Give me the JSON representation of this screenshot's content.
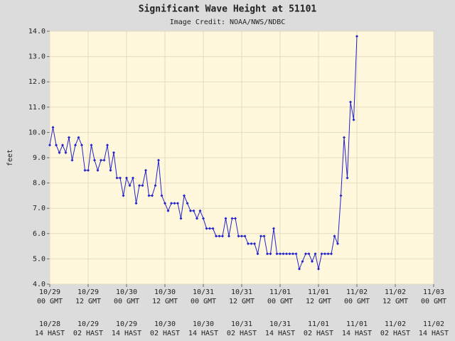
{
  "chart_data": {
    "type": "line",
    "title": "Significant Wave Height at 51101",
    "subtitle": "Image Credit: NOAA/NWS/NDBC",
    "y_label": "feet",
    "x": [
      0,
      1,
      2,
      3,
      4,
      5,
      6,
      7,
      8,
      9,
      10,
      11,
      12,
      13,
      14,
      15,
      16,
      17,
      18,
      19,
      20,
      21,
      22,
      23,
      24,
      25,
      26,
      27,
      28,
      29,
      30,
      31,
      32,
      33,
      34,
      35,
      36,
      37,
      38,
      39,
      40,
      41,
      42,
      43,
      44,
      45,
      46,
      47,
      48,
      49,
      50,
      51,
      52,
      53,
      54,
      55,
      56,
      57,
      58,
      59,
      60,
      61,
      62,
      63,
      64,
      65,
      66,
      67,
      68,
      69,
      70,
      71,
      72,
      73,
      74,
      75,
      76,
      77,
      78,
      79,
      80,
      81,
      82,
      83,
      84,
      85,
      86,
      87,
      88,
      89,
      90,
      91,
      92,
      93,
      94,
      95,
      96
    ],
    "series": [
      {
        "name": "Significant Wave Height",
        "color": "#2222cc",
        "values": [
          9.5,
          10.2,
          9.5,
          9.2,
          9.5,
          9.2,
          9.8,
          8.9,
          9.5,
          9.8,
          9.5,
          8.5,
          8.5,
          9.5,
          8.9,
          8.5,
          8.9,
          8.9,
          9.5,
          8.5,
          9.2,
          8.2,
          8.2,
          7.5,
          8.2,
          7.9,
          8.2,
          7.2,
          7.9,
          7.9,
          8.5,
          7.5,
          7.5,
          7.9,
          8.9,
          7.5,
          7.2,
          6.9,
          7.2,
          7.2,
          7.2,
          6.6,
          7.5,
          7.2,
          6.9,
          6.9,
          6.6,
          6.9,
          6.6,
          6.2,
          6.2,
          6.2,
          5.9,
          5.9,
          5.9,
          6.6,
          5.9,
          6.6,
          6.6,
          5.9,
          5.9,
          5.9,
          5.6,
          5.6,
          5.6,
          5.2,
          5.9,
          5.9,
          5.2,
          5.2,
          6.2,
          5.2,
          5.2,
          5.2,
          5.2,
          5.2,
          5.2,
          5.2,
          4.6,
          4.9,
          5.2,
          5.2,
          4.9,
          5.2,
          4.6,
          5.2,
          5.2,
          5.2,
          5.2,
          5.9,
          5.6,
          7.5,
          9.8,
          8.2,
          11.2,
          10.5,
          13.8
        ]
      }
    ],
    "xlim": [
      0,
      120
    ],
    "xticks": [
      {
        "value": 0,
        "label": "10/29\n00 GMT",
        "local_label": "10/28\n14 HAST"
      },
      {
        "value": 12,
        "label": "10/29\n12 GMT",
        "local_label": "10/29\n02 HAST"
      },
      {
        "value": 24,
        "label": "10/30\n00 GMT",
        "local_label": "10/29\n14 HAST"
      },
      {
        "value": 36,
        "label": "10/30\n12 GMT",
        "local_label": "10/30\n02 HAST"
      },
      {
        "value": 48,
        "label": "10/31\n00 GMT",
        "local_label": "10/30\n14 HAST"
      },
      {
        "value": 60,
        "label": "10/31\n12 GMT",
        "local_label": "10/31\n02 HAST"
      },
      {
        "value": 72,
        "label": "11/01\n00 GMT",
        "local_label": "10/31\n14 HAST"
      },
      {
        "value": 84,
        "label": "11/01\n12 GMT",
        "local_label": "11/01\n02 HAST"
      },
      {
        "value": 96,
        "label": "11/02\n00 GMT",
        "local_label": "11/01\n14 HAST"
      },
      {
        "value": 108,
        "label": "11/02\n12 GMT",
        "local_label": "11/02\n02 HAST"
      },
      {
        "value": 120,
        "label": "11/03\n00 GMT",
        "local_label": "11/02\n14 HAST"
      }
    ],
    "ylim": [
      4,
      14
    ],
    "yticks": [
      {
        "value": 4,
        "label": "4.0"
      },
      {
        "value": 5,
        "label": "5.0"
      },
      {
        "value": 6,
        "label": "6.0"
      },
      {
        "value": 7,
        "label": "7.0"
      },
      {
        "value": 8,
        "label": "8.0"
      },
      {
        "value": 9,
        "label": "9.0"
      },
      {
        "value": 10,
        "label": "10.0"
      },
      {
        "value": 11,
        "label": "11.0"
      },
      {
        "value": 12,
        "label": "12.0"
      },
      {
        "value": 13,
        "label": "13.0"
      },
      {
        "value": 14,
        "label": "14.0"
      }
    ],
    "grid": true
  }
}
